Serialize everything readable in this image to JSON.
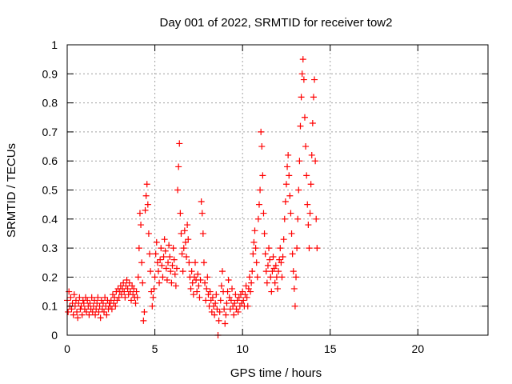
{
  "chart_data": {
    "type": "scatter",
    "title": "Day 001 of 2022, SRMTID for receiver tow2",
    "xlabel": "GPS time / hours",
    "ylabel": "SRMTID / TECUs",
    "xlim": [
      0,
      24
    ],
    "ylim": [
      0,
      1
    ],
    "xticks": [
      0,
      5,
      10,
      15,
      20
    ],
    "yticks": [
      0,
      0.1,
      0.2,
      0.3,
      0.4,
      0.5,
      0.6,
      0.7,
      0.8,
      0.9,
      1
    ],
    "grid": true,
    "marker": "+",
    "color": "#ff0000",
    "series": [
      {
        "name": "SRMTID",
        "points": [
          [
            0.0,
            0.12
          ],
          [
            0.05,
            0.08
          ],
          [
            0.1,
            0.15
          ],
          [
            0.15,
            0.1
          ],
          [
            0.2,
            0.13
          ],
          [
            0.25,
            0.09
          ],
          [
            0.3,
            0.11
          ],
          [
            0.35,
            0.07
          ],
          [
            0.4,
            0.14
          ],
          [
            0.45,
            0.1
          ],
          [
            0.5,
            0.12
          ],
          [
            0.55,
            0.08
          ],
          [
            0.6,
            0.06
          ],
          [
            0.65,
            0.11
          ],
          [
            0.7,
            0.13
          ],
          [
            0.75,
            0.09
          ],
          [
            0.8,
            0.1
          ],
          [
            0.85,
            0.07
          ],
          [
            0.9,
            0.12
          ],
          [
            0.95,
            0.11
          ],
          [
            1.0,
            0.09
          ],
          [
            1.05,
            0.13
          ],
          [
            1.1,
            0.08
          ],
          [
            1.15,
            0.12
          ],
          [
            1.2,
            0.1
          ],
          [
            1.25,
            0.07
          ],
          [
            1.3,
            0.11
          ],
          [
            1.35,
            0.09
          ],
          [
            1.4,
            0.13
          ],
          [
            1.45,
            0.08
          ],
          [
            1.5,
            0.1
          ],
          [
            1.55,
            0.12
          ],
          [
            1.6,
            0.07
          ],
          [
            1.65,
            0.09
          ],
          [
            1.7,
            0.11
          ],
          [
            1.75,
            0.13
          ],
          [
            1.8,
            0.08
          ],
          [
            1.85,
            0.1
          ],
          [
            1.9,
            0.06
          ],
          [
            1.95,
            0.12
          ],
          [
            2.0,
            0.09
          ],
          [
            2.05,
            0.11
          ],
          [
            2.1,
            0.08
          ],
          [
            2.15,
            0.13
          ],
          [
            2.2,
            0.1
          ],
          [
            2.25,
            0.07
          ],
          [
            2.3,
            0.12
          ],
          [
            2.35,
            0.09
          ],
          [
            2.4,
            0.11
          ],
          [
            2.45,
            0.1
          ],
          [
            2.5,
            0.12
          ],
          [
            2.55,
            0.09
          ],
          [
            2.6,
            0.14
          ],
          [
            2.65,
            0.11
          ],
          [
            2.7,
            0.13
          ],
          [
            2.75,
            0.1
          ],
          [
            2.8,
            0.15
          ],
          [
            2.85,
            0.12
          ],
          [
            2.9,
            0.16
          ],
          [
            2.95,
            0.13
          ],
          [
            3.0,
            0.15
          ],
          [
            3.05,
            0.17
          ],
          [
            3.1,
            0.14
          ],
          [
            3.15,
            0.16
          ],
          [
            3.2,
            0.18
          ],
          [
            3.25,
            0.15
          ],
          [
            3.3,
            0.13
          ],
          [
            3.35,
            0.17
          ],
          [
            3.4,
            0.19
          ],
          [
            3.45,
            0.16
          ],
          [
            3.5,
            0.14
          ],
          [
            3.55,
            0.18
          ],
          [
            3.6,
            0.15
          ],
          [
            3.65,
            0.12
          ],
          [
            3.7,
            0.17
          ],
          [
            3.75,
            0.14
          ],
          [
            3.8,
            0.16
          ],
          [
            3.85,
            0.13
          ],
          [
            3.9,
            0.11
          ],
          [
            3.95,
            0.15
          ],
          [
            4.0,
            0.13
          ],
          [
            4.05,
            0.2
          ],
          [
            4.1,
            0.3
          ],
          [
            4.15,
            0.42
          ],
          [
            4.2,
            0.38
          ],
          [
            4.25,
            0.25
          ],
          [
            4.3,
            0.18
          ],
          [
            4.35,
            0.05
          ],
          [
            4.4,
            0.08
          ],
          [
            4.45,
            0.43
          ],
          [
            4.5,
            0.48
          ],
          [
            4.55,
            0.52
          ],
          [
            4.6,
            0.45
          ],
          [
            4.65,
            0.35
          ],
          [
            4.7,
            0.28
          ],
          [
            4.75,
            0.22
          ],
          [
            4.8,
            0.15
          ],
          [
            4.85,
            0.1
          ],
          [
            4.9,
            0.13
          ],
          [
            4.95,
            0.16
          ],
          [
            5.0,
            0.2
          ],
          [
            5.05,
            0.28
          ],
          [
            5.1,
            0.32
          ],
          [
            5.15,
            0.25
          ],
          [
            5.2,
            0.22
          ],
          [
            5.25,
            0.18
          ],
          [
            5.3,
            0.26
          ],
          [
            5.35,
            0.3
          ],
          [
            5.4,
            0.24
          ],
          [
            5.45,
            0.2
          ],
          [
            5.5,
            0.27
          ],
          [
            5.55,
            0.33
          ],
          [
            5.6,
            0.29
          ],
          [
            5.65,
            0.23
          ],
          [
            5.7,
            0.19
          ],
          [
            5.75,
            0.25
          ],
          [
            5.8,
            0.31
          ],
          [
            5.85,
            0.27
          ],
          [
            5.9,
            0.22
          ],
          [
            5.95,
            0.18
          ],
          [
            6.0,
            0.24
          ],
          [
            6.05,
            0.3
          ],
          [
            6.1,
            0.26
          ],
          [
            6.15,
            0.21
          ],
          [
            6.2,
            0.17
          ],
          [
            6.25,
            0.23
          ],
          [
            6.3,
            0.5
          ],
          [
            6.35,
            0.58
          ],
          [
            6.4,
            0.66
          ],
          [
            6.45,
            0.42
          ],
          [
            6.5,
            0.35
          ],
          [
            6.55,
            0.28
          ],
          [
            6.6,
            0.22
          ],
          [
            6.65,
            0.3
          ],
          [
            6.7,
            0.36
          ],
          [
            6.75,
            0.32
          ],
          [
            6.8,
            0.27
          ],
          [
            6.85,
            0.38
          ],
          [
            6.9,
            0.33
          ],
          [
            6.95,
            0.25
          ],
          [
            7.0,
            0.2
          ],
          [
            7.05,
            0.16
          ],
          [
            7.1,
            0.22
          ],
          [
            7.15,
            0.18
          ],
          [
            7.2,
            0.14
          ],
          [
            7.25,
            0.2
          ],
          [
            7.3,
            0.25
          ],
          [
            7.35,
            0.19
          ],
          [
            7.4,
            0.15
          ],
          [
            7.45,
            0.21
          ],
          [
            7.5,
            0.17
          ],
          [
            7.55,
            0.13
          ],
          [
            7.6,
            0.19
          ],
          [
            7.65,
            0.46
          ],
          [
            7.7,
            0.42
          ],
          [
            7.75,
            0.35
          ],
          [
            7.8,
            0.25
          ],
          [
            7.85,
            0.18
          ],
          [
            7.9,
            0.12
          ],
          [
            7.95,
            0.16
          ],
          [
            8.0,
            0.2
          ],
          [
            8.05,
            0.14
          ],
          [
            8.1,
            0.1
          ],
          [
            8.15,
            0.15
          ],
          [
            8.2,
            0.12
          ],
          [
            8.25,
            0.08
          ],
          [
            8.3,
            0.13
          ],
          [
            8.35,
            0.1
          ],
          [
            8.4,
            0.07
          ],
          [
            8.45,
            0.11
          ],
          [
            8.5,
            0.14
          ],
          [
            8.55,
            0.09
          ],
          [
            8.6,
            0.0
          ],
          [
            8.65,
            0.05
          ],
          [
            8.7,
            0.08
          ],
          [
            8.75,
            0.12
          ],
          [
            8.8,
            0.17
          ],
          [
            8.85,
            0.22
          ],
          [
            8.9,
            0.15
          ],
          [
            8.95,
            0.09
          ],
          [
            9.0,
            0.04
          ],
          [
            9.05,
            0.07
          ],
          [
            9.1,
            0.11
          ],
          [
            9.15,
            0.15
          ],
          [
            9.2,
            0.19
          ],
          [
            9.25,
            0.13
          ],
          [
            9.3,
            0.09
          ],
          [
            9.35,
            0.12
          ],
          [
            9.4,
            0.16
          ],
          [
            9.45,
            0.1
          ],
          [
            9.5,
            0.07
          ],
          [
            9.55,
            0.11
          ],
          [
            9.6,
            0.14
          ],
          [
            9.65,
            0.09
          ],
          [
            9.7,
            0.12
          ],
          [
            9.75,
            0.08
          ],
          [
            9.8,
            0.13
          ],
          [
            9.85,
            0.1
          ],
          [
            9.9,
            0.14
          ],
          [
            9.95,
            0.11
          ],
          [
            10.0,
            0.15
          ],
          [
            10.05,
            0.12
          ],
          [
            10.1,
            0.1
          ],
          [
            10.15,
            0.14
          ],
          [
            10.2,
            0.17
          ],
          [
            10.25,
            0.13
          ],
          [
            10.3,
            0.1
          ],
          [
            10.35,
            0.16
          ],
          [
            10.4,
            0.2
          ],
          [
            10.45,
            0.15
          ],
          [
            10.5,
            0.18
          ],
          [
            10.55,
            0.22
          ],
          [
            10.6,
            0.28
          ],
          [
            10.65,
            0.32
          ],
          [
            10.7,
            0.36
          ],
          [
            10.75,
            0.3
          ],
          [
            10.8,
            0.25
          ],
          [
            10.85,
            0.2
          ],
          [
            10.9,
            0.4
          ],
          [
            10.95,
            0.45
          ],
          [
            11.0,
            0.5
          ],
          [
            11.05,
            0.7
          ],
          [
            11.1,
            0.65
          ],
          [
            11.15,
            0.55
          ],
          [
            11.2,
            0.42
          ],
          [
            11.25,
            0.35
          ],
          [
            11.3,
            0.28
          ],
          [
            11.35,
            0.22
          ],
          [
            11.4,
            0.18
          ],
          [
            11.45,
            0.24
          ],
          [
            11.5,
            0.3
          ],
          [
            11.55,
            0.26
          ],
          [
            11.6,
            0.2
          ],
          [
            11.65,
            0.15
          ],
          [
            11.7,
            0.22
          ],
          [
            11.75,
            0.27
          ],
          [
            11.8,
            0.23
          ],
          [
            11.85,
            0.18
          ],
          [
            11.9,
            0.24
          ],
          [
            11.95,
            0.2
          ],
          [
            12.0,
            0.16
          ],
          [
            12.05,
            0.22
          ],
          [
            12.1,
            0.26
          ],
          [
            12.15,
            0.3
          ],
          [
            12.2,
            0.25
          ],
          [
            12.25,
            0.2
          ],
          [
            12.3,
            0.27
          ],
          [
            12.35,
            0.33
          ],
          [
            12.4,
            0.4
          ],
          [
            12.45,
            0.46
          ],
          [
            12.5,
            0.52
          ],
          [
            12.55,
            0.58
          ],
          [
            12.6,
            0.62
          ],
          [
            12.65,
            0.55
          ],
          [
            12.7,
            0.48
          ],
          [
            12.75,
            0.42
          ],
          [
            12.8,
            0.35
          ],
          [
            12.85,
            0.28
          ],
          [
            12.9,
            0.22
          ],
          [
            12.95,
            0.16
          ],
          [
            13.0,
            0.1
          ],
          [
            13.05,
            0.2
          ],
          [
            13.1,
            0.3
          ],
          [
            13.15,
            0.4
          ],
          [
            13.2,
            0.5
          ],
          [
            13.25,
            0.6
          ],
          [
            13.3,
            0.72
          ],
          [
            13.35,
            0.82
          ],
          [
            13.4,
            0.9
          ],
          [
            13.45,
            0.95
          ],
          [
            13.5,
            0.88
          ],
          [
            13.55,
            0.75
          ],
          [
            13.6,
            0.65
          ],
          [
            13.65,
            0.55
          ],
          [
            13.7,
            0.45
          ],
          [
            13.75,
            0.38
          ],
          [
            13.8,
            0.3
          ],
          [
            13.85,
            0.42
          ],
          [
            13.9,
            0.52
          ],
          [
            13.95,
            0.62
          ],
          [
            14.0,
            0.73
          ],
          [
            14.05,
            0.82
          ],
          [
            14.1,
            0.88
          ],
          [
            14.15,
            0.6
          ],
          [
            14.2,
            0.4
          ],
          [
            14.25,
            0.3
          ]
        ]
      }
    ]
  }
}
